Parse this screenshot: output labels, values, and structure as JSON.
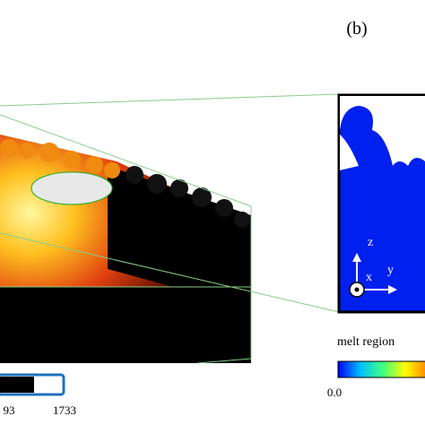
{
  "panel_label": "(b)",
  "axes": {
    "z": "z",
    "x": "x",
    "y": "y"
  },
  "melt_legend": {
    "title": "melt region",
    "min": "0.0"
  },
  "temperature_scale": {
    "labels": [
      "93",
      "1733"
    ]
  }
}
